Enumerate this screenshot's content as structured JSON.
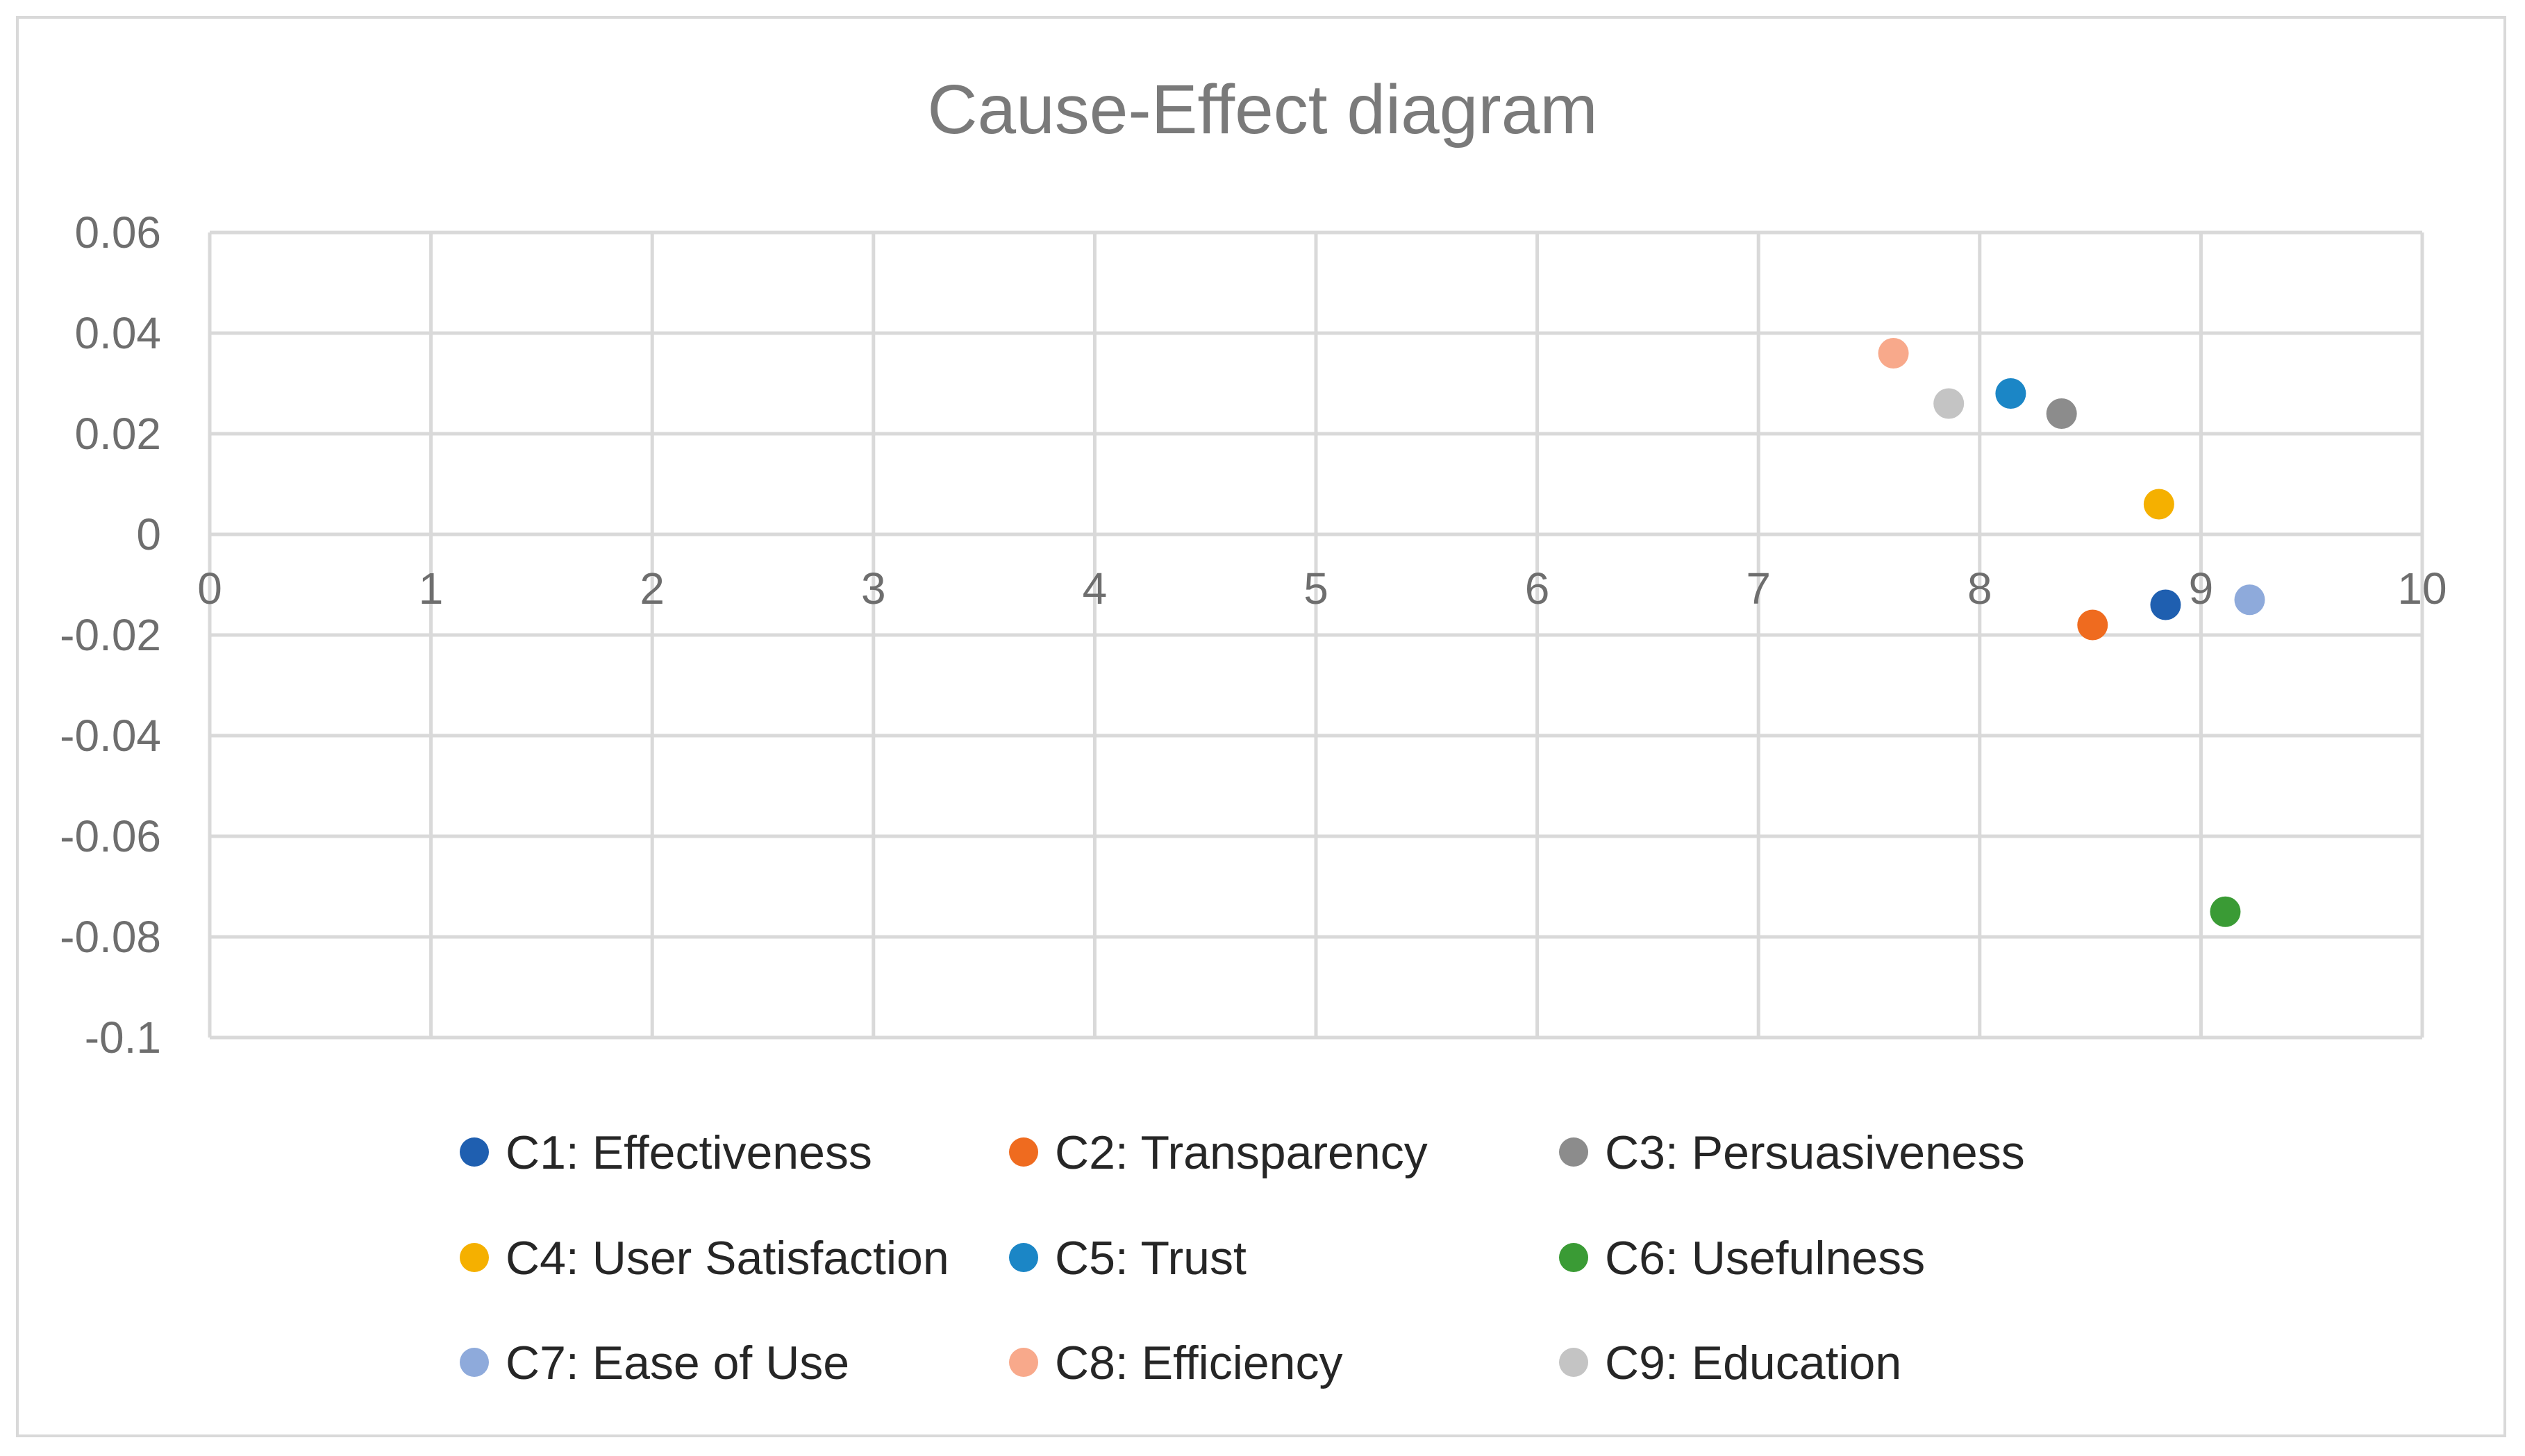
{
  "chart_data": {
    "type": "scatter",
    "title": "Cause-Effect diagram",
    "xlabel": "",
    "ylabel": "",
    "xlim": [
      0,
      10
    ],
    "ylim": [
      -0.1,
      0.06
    ],
    "x_ticks": [
      0,
      1,
      2,
      3,
      4,
      5,
      6,
      7,
      8,
      9,
      10
    ],
    "x_tick_labels": [
      "0",
      "1",
      "2",
      "3",
      "4",
      "5",
      "6",
      "7",
      "8",
      "9",
      "10"
    ],
    "y_ticks": [
      0.06,
      0.04,
      0.02,
      0,
      -0.02,
      -0.04,
      -0.06,
      -0.08,
      -0.1
    ],
    "y_tick_labels": [
      "0.06",
      "0.04",
      "0.02",
      "0",
      "-0.02",
      "-0.04",
      "-0.06",
      "-0.08",
      "-0.1"
    ],
    "grid": true,
    "legend_position": "bottom",
    "series": [
      {
        "name": "C1: Effectiveness",
        "x": 8.84,
        "y": -0.014,
        "color": "#1f5fb0"
      },
      {
        "name": "C2: Transparency",
        "x": 8.51,
        "y": -0.018,
        "color": "#ef6b1f"
      },
      {
        "name": "C3: Persuasiveness",
        "x": 8.37,
        "y": 0.024,
        "color": "#8c8c8c"
      },
      {
        "name": "C4: User Satisfaction",
        "x": 8.81,
        "y": 0.006,
        "color": "#f5b000"
      },
      {
        "name": "C5: Trust",
        "x": 8.14,
        "y": 0.028,
        "color": "#1b86c6"
      },
      {
        "name": "C6: Usefulness",
        "x": 9.11,
        "y": -0.075,
        "color": "#3a9b35"
      },
      {
        "name": "C7: Ease of Use",
        "x": 9.22,
        "y": -0.013,
        "color": "#8eaadb"
      },
      {
        "name": "C8: Efficiency",
        "x": 7.61,
        "y": 0.036,
        "color": "#f8a98b"
      },
      {
        "name": "C9: Education",
        "x": 7.86,
        "y": 0.026,
        "color": "#c4c4c4"
      }
    ]
  }
}
